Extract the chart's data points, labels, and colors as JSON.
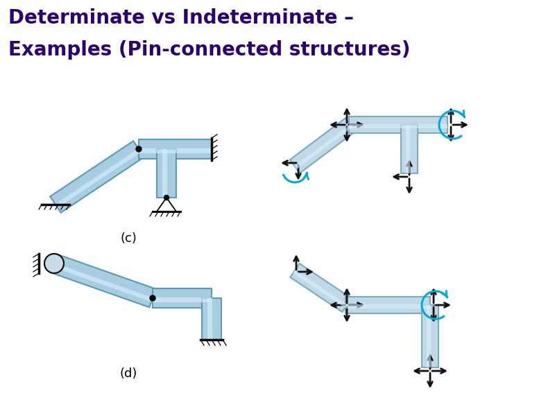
{
  "title_line1": "Determinate vs Indeterminate –",
  "title_line2": "Examples (Pin-connected structures)",
  "title_color": "#2d0070",
  "title_fontsize": 20,
  "bg_color": "#ffffff",
  "beam_lc": "#a8cce0",
  "beam_dc": "#5a9ab5",
  "beam_lc2": "#c0d8e8",
  "beam_dc2": "#7aabbb",
  "arrow_color": "#111111",
  "arrow_color_blue": "#00aadd",
  "label_c": "(c)",
  "label_d": "(d)"
}
